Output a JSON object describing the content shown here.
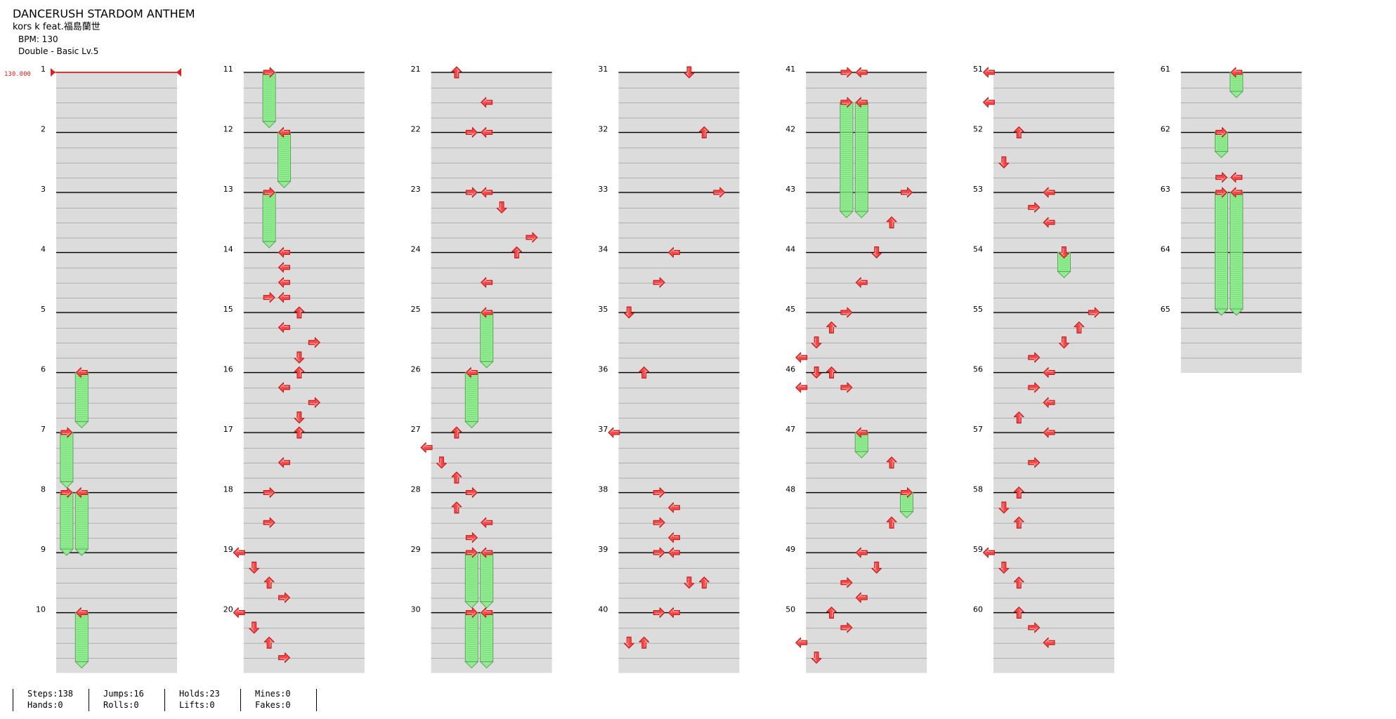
{
  "song": {
    "title": "DANCERUSH STARDOM ANTHEM",
    "artist": "kors k feat.福島蘭世",
    "bpm_label": "BPM: 130",
    "difficulty": "Double - Basic  Lv.5"
  },
  "bpm_marker": "130.000",
  "colors": {
    "arrow": "#ff4444",
    "hold_fill": "#90ee90",
    "hold_border": "#5fa05f",
    "band": "#dcdcdc",
    "bpm_line": "#e02020"
  },
  "stats": {
    "steps": "Steps:138",
    "jumps": "Jumps:16",
    "holds": "Holds:23",
    "mines": "Mines:0",
    "hands": "Hands:0",
    "rolls": "Rolls:0",
    "lifts": "Lifts:0",
    "fakes": "Fakes:0"
  },
  "chart_data": {
    "type": "stepchart",
    "measures": [
      "1",
      "2",
      "3",
      "4",
      "5",
      "6",
      "7",
      "8",
      "9",
      "10",
      "11",
      "12",
      "13",
      "14",
      "15",
      "16",
      "17",
      "18",
      "19",
      "20",
      "21",
      "22",
      "23",
      "24",
      "25",
      "26",
      "27",
      "28",
      "29",
      "30",
      "31",
      "32",
      "33",
      "34",
      "35",
      "36",
      "37",
      "38",
      "39",
      "40",
      "41",
      "42",
      "43",
      "44",
      "45",
      "46",
      "47",
      "48",
      "49",
      "50",
      "51",
      "52",
      "53",
      "54",
      "55",
      "56",
      "57",
      "58",
      "59",
      "60",
      "61",
      "62",
      "63",
      "64",
      "65"
    ],
    "notes": [
      [
        6,
        0,
        2,
        "left",
        0.875
      ],
      [
        7,
        0,
        1,
        "right",
        0.875
      ],
      [
        8,
        0,
        1,
        "right",
        1.0
      ],
      [
        8,
        0,
        2,
        "left",
        1.0
      ],
      [
        10,
        0,
        2,
        "left",
        0.875
      ],
      [
        11,
        0,
        2,
        "right",
        0.875
      ],
      [
        12,
        0,
        3,
        "left",
        0.875
      ],
      [
        13,
        0,
        2,
        "right",
        0.875
      ],
      [
        14,
        0,
        3,
        "left",
        0
      ],
      [
        14,
        1,
        3,
        "left",
        0
      ],
      [
        14,
        2,
        3,
        "left",
        0
      ],
      [
        14,
        3,
        2,
        "right",
        0
      ],
      [
        14,
        3,
        3,
        "left",
        0
      ],
      [
        15,
        0,
        4,
        "up",
        0
      ],
      [
        15,
        1,
        3,
        "left",
        0
      ],
      [
        15,
        2,
        5,
        "right",
        0
      ],
      [
        15,
        3,
        4,
        "down",
        0
      ],
      [
        16,
        0,
        4,
        "up",
        0
      ],
      [
        16,
        1,
        3,
        "left",
        0
      ],
      [
        16,
        2,
        5,
        "right",
        0
      ],
      [
        16,
        3,
        4,
        "down",
        0
      ],
      [
        17,
        0,
        4,
        "up",
        0
      ],
      [
        17,
        2,
        3,
        "left",
        0
      ],
      [
        18,
        0,
        2,
        "right",
        0
      ],
      [
        18,
        2,
        2,
        "right",
        0
      ],
      [
        19,
        0,
        0,
        "left",
        0
      ],
      [
        19,
        1,
        1,
        "down",
        0
      ],
      [
        19,
        2,
        2,
        "up",
        0
      ],
      [
        19,
        3,
        3,
        "right",
        0
      ],
      [
        20,
        0,
        0,
        "left",
        0
      ],
      [
        20,
        1,
        1,
        "down",
        0
      ],
      [
        20,
        2,
        2,
        "up",
        0
      ],
      [
        20,
        3,
        3,
        "right",
        0
      ],
      [
        21,
        0,
        2,
        "up",
        0
      ],
      [
        21,
        2,
        4,
        "left",
        0
      ],
      [
        22,
        0,
        3,
        "right",
        0
      ],
      [
        22,
        0,
        4,
        "left",
        0
      ],
      [
        23,
        0,
        3,
        "right",
        0
      ],
      [
        23,
        0,
        4,
        "left",
        0
      ],
      [
        23,
        1,
        5,
        "down",
        0
      ],
      [
        23,
        3,
        7,
        "right",
        0
      ],
      [
        24,
        0,
        6,
        "up",
        0
      ],
      [
        24,
        2,
        4,
        "left",
        0
      ],
      [
        25,
        0,
        4,
        "left",
        0.875
      ],
      [
        26,
        0,
        3,
        "left",
        0.875
      ],
      [
        27,
        0,
        2,
        "up",
        0
      ],
      [
        27,
        1,
        0,
        "left",
        0
      ],
      [
        27,
        2,
        1,
        "down",
        0
      ],
      [
        27,
        3,
        2,
        "up",
        0
      ],
      [
        28,
        0,
        3,
        "right",
        0
      ],
      [
        28,
        1,
        2,
        "up",
        0
      ],
      [
        28,
        2,
        4,
        "left",
        0
      ],
      [
        28,
        3,
        3,
        "right",
        0
      ],
      [
        29,
        0,
        3,
        "right",
        0.875
      ],
      [
        29,
        0,
        4,
        "left",
        0.875
      ],
      [
        30,
        0,
        3,
        "right",
        0.875
      ],
      [
        30,
        0,
        4,
        "left",
        0.875
      ],
      [
        31,
        0,
        5,
        "down",
        0
      ],
      [
        32,
        0,
        6,
        "up",
        0
      ],
      [
        33,
        0,
        7,
        "right",
        0
      ],
      [
        34,
        0,
        4,
        "left",
        0
      ],
      [
        34,
        2,
        3,
        "right",
        0
      ],
      [
        35,
        0,
        1,
        "down",
        0
      ],
      [
        36,
        0,
        2,
        "up",
        0
      ],
      [
        37,
        0,
        0,
        "left",
        0
      ],
      [
        38,
        0,
        3,
        "right",
        0
      ],
      [
        38,
        1,
        4,
        "left",
        0
      ],
      [
        38,
        2,
        3,
        "right",
        0
      ],
      [
        38,
        3,
        4,
        "left",
        0
      ],
      [
        39,
        0,
        3,
        "right",
        0
      ],
      [
        39,
        0,
        4,
        "left",
        0
      ],
      [
        39,
        2,
        5,
        "down",
        0
      ],
      [
        39,
        2,
        6,
        "up",
        0
      ],
      [
        40,
        0,
        3,
        "right",
        0
      ],
      [
        40,
        0,
        4,
        "left",
        0
      ],
      [
        40,
        2,
        1,
        "down",
        0
      ],
      [
        40,
        2,
        2,
        "up",
        0
      ],
      [
        41,
        0,
        3,
        "right",
        0
      ],
      [
        41,
        0,
        4,
        "left",
        0
      ],
      [
        41,
        2,
        3,
        "right",
        1.875
      ],
      [
        41,
        2,
        4,
        "left",
        1.875
      ],
      [
        43,
        0,
        7,
        "right",
        0
      ],
      [
        43,
        2,
        6,
        "up",
        0
      ],
      [
        44,
        0,
        5,
        "down",
        0
      ],
      [
        44,
        2,
        4,
        "left",
        0
      ],
      [
        45,
        0,
        3,
        "right",
        0
      ],
      [
        45,
        1,
        2,
        "up",
        0
      ],
      [
        45,
        2,
        1,
        "down",
        0
      ],
      [
        45,
        3,
        0,
        "left",
        0
      ],
      [
        46,
        0,
        1,
        "down",
        0
      ],
      [
        46,
        0,
        2,
        "up",
        0
      ],
      [
        46,
        1,
        0,
        "left",
        0
      ],
      [
        46,
        1,
        3,
        "right",
        0
      ],
      [
        47,
        0,
        4,
        "left",
        0.375
      ],
      [
        47,
        2,
        6,
        "up",
        0
      ],
      [
        48,
        0,
        7,
        "right",
        0.375
      ],
      [
        48,
        2,
        6,
        "up",
        0
      ],
      [
        49,
        0,
        4,
        "left",
        0
      ],
      [
        49,
        1,
        5,
        "down",
        0
      ],
      [
        49,
        2,
        3,
        "right",
        0
      ],
      [
        49,
        3,
        4,
        "left",
        0
      ],
      [
        50,
        0,
        2,
        "up",
        0
      ],
      [
        50,
        1,
        3,
        "right",
        0
      ],
      [
        50,
        2,
        0,
        "left",
        0
      ],
      [
        50,
        3,
        1,
        "down",
        0
      ],
      [
        51,
        0,
        0,
        "left",
        0
      ],
      [
        51,
        2,
        0,
        "left",
        0
      ],
      [
        52,
        0,
        2,
        "up",
        0
      ],
      [
        52,
        2,
        1,
        "down",
        0
      ],
      [
        53,
        0,
        4,
        "left",
        0
      ],
      [
        53,
        1,
        3,
        "right",
        0
      ],
      [
        53,
        2,
        4,
        "left",
        0
      ],
      [
        54,
        0,
        5,
        "down",
        0.375
      ],
      [
        55,
        0,
        7,
        "right",
        0
      ],
      [
        55,
        1,
        6,
        "up",
        0
      ],
      [
        55,
        2,
        5,
        "down",
        0
      ],
      [
        55,
        3,
        3,
        "right",
        0
      ],
      [
        56,
        0,
        4,
        "left",
        0
      ],
      [
        56,
        1,
        3,
        "right",
        0
      ],
      [
        56,
        2,
        4,
        "left",
        0
      ],
      [
        56,
        3,
        2,
        "up",
        0
      ],
      [
        57,
        0,
        4,
        "left",
        0
      ],
      [
        57,
        2,
        3,
        "right",
        0
      ],
      [
        58,
        0,
        2,
        "up",
        0
      ],
      [
        58,
        1,
        1,
        "down",
        0
      ],
      [
        58,
        2,
        2,
        "up",
        0
      ],
      [
        59,
        0,
        0,
        "left",
        0
      ],
      [
        59,
        1,
        1,
        "down",
        0
      ],
      [
        59,
        2,
        2,
        "up",
        0
      ],
      [
        60,
        0,
        2,
        "up",
        0
      ],
      [
        60,
        1,
        3,
        "right",
        0
      ],
      [
        60,
        2,
        4,
        "left",
        0
      ],
      [
        61,
        0,
        4,
        "left",
        0.375
      ],
      [
        62,
        0,
        3,
        "right",
        0.375
      ],
      [
        62,
        3,
        3,
        "right",
        0
      ],
      [
        62,
        3,
        4,
        "left",
        0
      ],
      [
        63,
        0,
        3,
        "right",
        2.0
      ],
      [
        63,
        0,
        4,
        "left",
        2.0
      ]
    ]
  }
}
